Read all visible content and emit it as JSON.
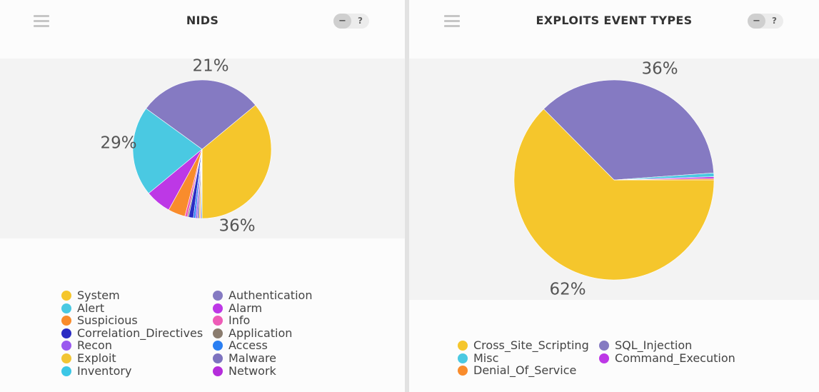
{
  "chart_data": [
    {
      "type": "pie",
      "title": "NIDS",
      "slices": [
        {
          "label": "System",
          "value": 36,
          "color": "#f5c62c"
        },
        {
          "label": "Authentication",
          "value": 29,
          "color": "#857ac2"
        },
        {
          "label": "Alert",
          "value": 21,
          "color": "#4ac9e2"
        },
        {
          "label": "Alarm",
          "value": 6,
          "color": "#bd38e6"
        },
        {
          "label": "Suspicious",
          "value": 4,
          "color": "#f98c2c"
        },
        {
          "label": "Info",
          "value": 0.6,
          "color": "#ee5cb7"
        },
        {
          "label": "Application",
          "value": 0.3,
          "color": "#8a7c6e"
        },
        {
          "label": "Correlation_Directives",
          "value": 1.1,
          "color": "#2a2cc3"
        },
        {
          "label": "Access",
          "value": 0.5,
          "color": "#2a7ff2"
        },
        {
          "label": "Recon",
          "value": 0.4,
          "color": "#9a59ef"
        },
        {
          "label": "Malware",
          "value": 0.4,
          "color": "#7d73bf"
        },
        {
          "label": "Exploit",
          "value": 0.3,
          "color": "#f2c535"
        },
        {
          "label": "Network",
          "value": 0.2,
          "color": "#b52ddb"
        },
        {
          "label": "Inventory",
          "value": 0.2,
          "color": "#3cc7e6"
        }
      ],
      "labels": [
        {
          "text": "36%",
          "value": 36
        },
        {
          "text": "29%",
          "value": 29
        },
        {
          "text": "21%",
          "value": 21
        }
      ],
      "legend_left": [
        {
          "label": "System",
          "color": "#f5c62c"
        },
        {
          "label": "Alert",
          "color": "#4ac9e2"
        },
        {
          "label": "Suspicious",
          "color": "#f98c2c"
        },
        {
          "label": "Correlation_Directives",
          "color": "#2a2cc3"
        },
        {
          "label": "Recon",
          "color": "#9a59ef"
        },
        {
          "label": "Exploit",
          "color": "#f2c535"
        },
        {
          "label": "Inventory",
          "color": "#3cc7e6"
        }
      ],
      "legend_right": [
        {
          "label": "Authentication",
          "color": "#857ac2"
        },
        {
          "label": "Alarm",
          "color": "#bd38e6"
        },
        {
          "label": "Info",
          "color": "#ee5cb7"
        },
        {
          "label": "Application",
          "color": "#8a7c6e"
        },
        {
          "label": "Access",
          "color": "#2a7ff2"
        },
        {
          "label": "Malware",
          "color": "#7d73bf"
        },
        {
          "label": "Network",
          "color": "#b52ddb"
        }
      ]
    },
    {
      "type": "pie",
      "title": "EXPLOITS EVENT TYPES",
      "slices": [
        {
          "label": "Cross_Site_Scripting",
          "value": 62,
          "color": "#f5c62c"
        },
        {
          "label": "SQL_Injection",
          "value": 36,
          "color": "#857ac2"
        },
        {
          "label": "Misc",
          "value": 0.6,
          "color": "#4ac9e2"
        },
        {
          "label": "Command_Execution",
          "value": 0.3,
          "color": "#bd38e6"
        },
        {
          "label": "Denial_Of_Service",
          "value": 0.2,
          "color": "#f98c2c"
        }
      ],
      "labels": [
        {
          "text": "62%",
          "value": 62
        },
        {
          "text": "36%",
          "value": 36
        }
      ],
      "legend_left": [
        {
          "label": "Cross_Site_Scripting",
          "color": "#f5c62c"
        },
        {
          "label": "Misc",
          "color": "#4ac9e2"
        },
        {
          "label": "Denial_Of_Service",
          "color": "#f98c2c"
        }
      ],
      "legend_right": [
        {
          "label": "SQL_Injection",
          "color": "#857ac2"
        },
        {
          "label": "Command_Execution",
          "color": "#bd38e6"
        }
      ]
    }
  ],
  "ui": {
    "minimize_label": "−",
    "help_label": "?"
  }
}
